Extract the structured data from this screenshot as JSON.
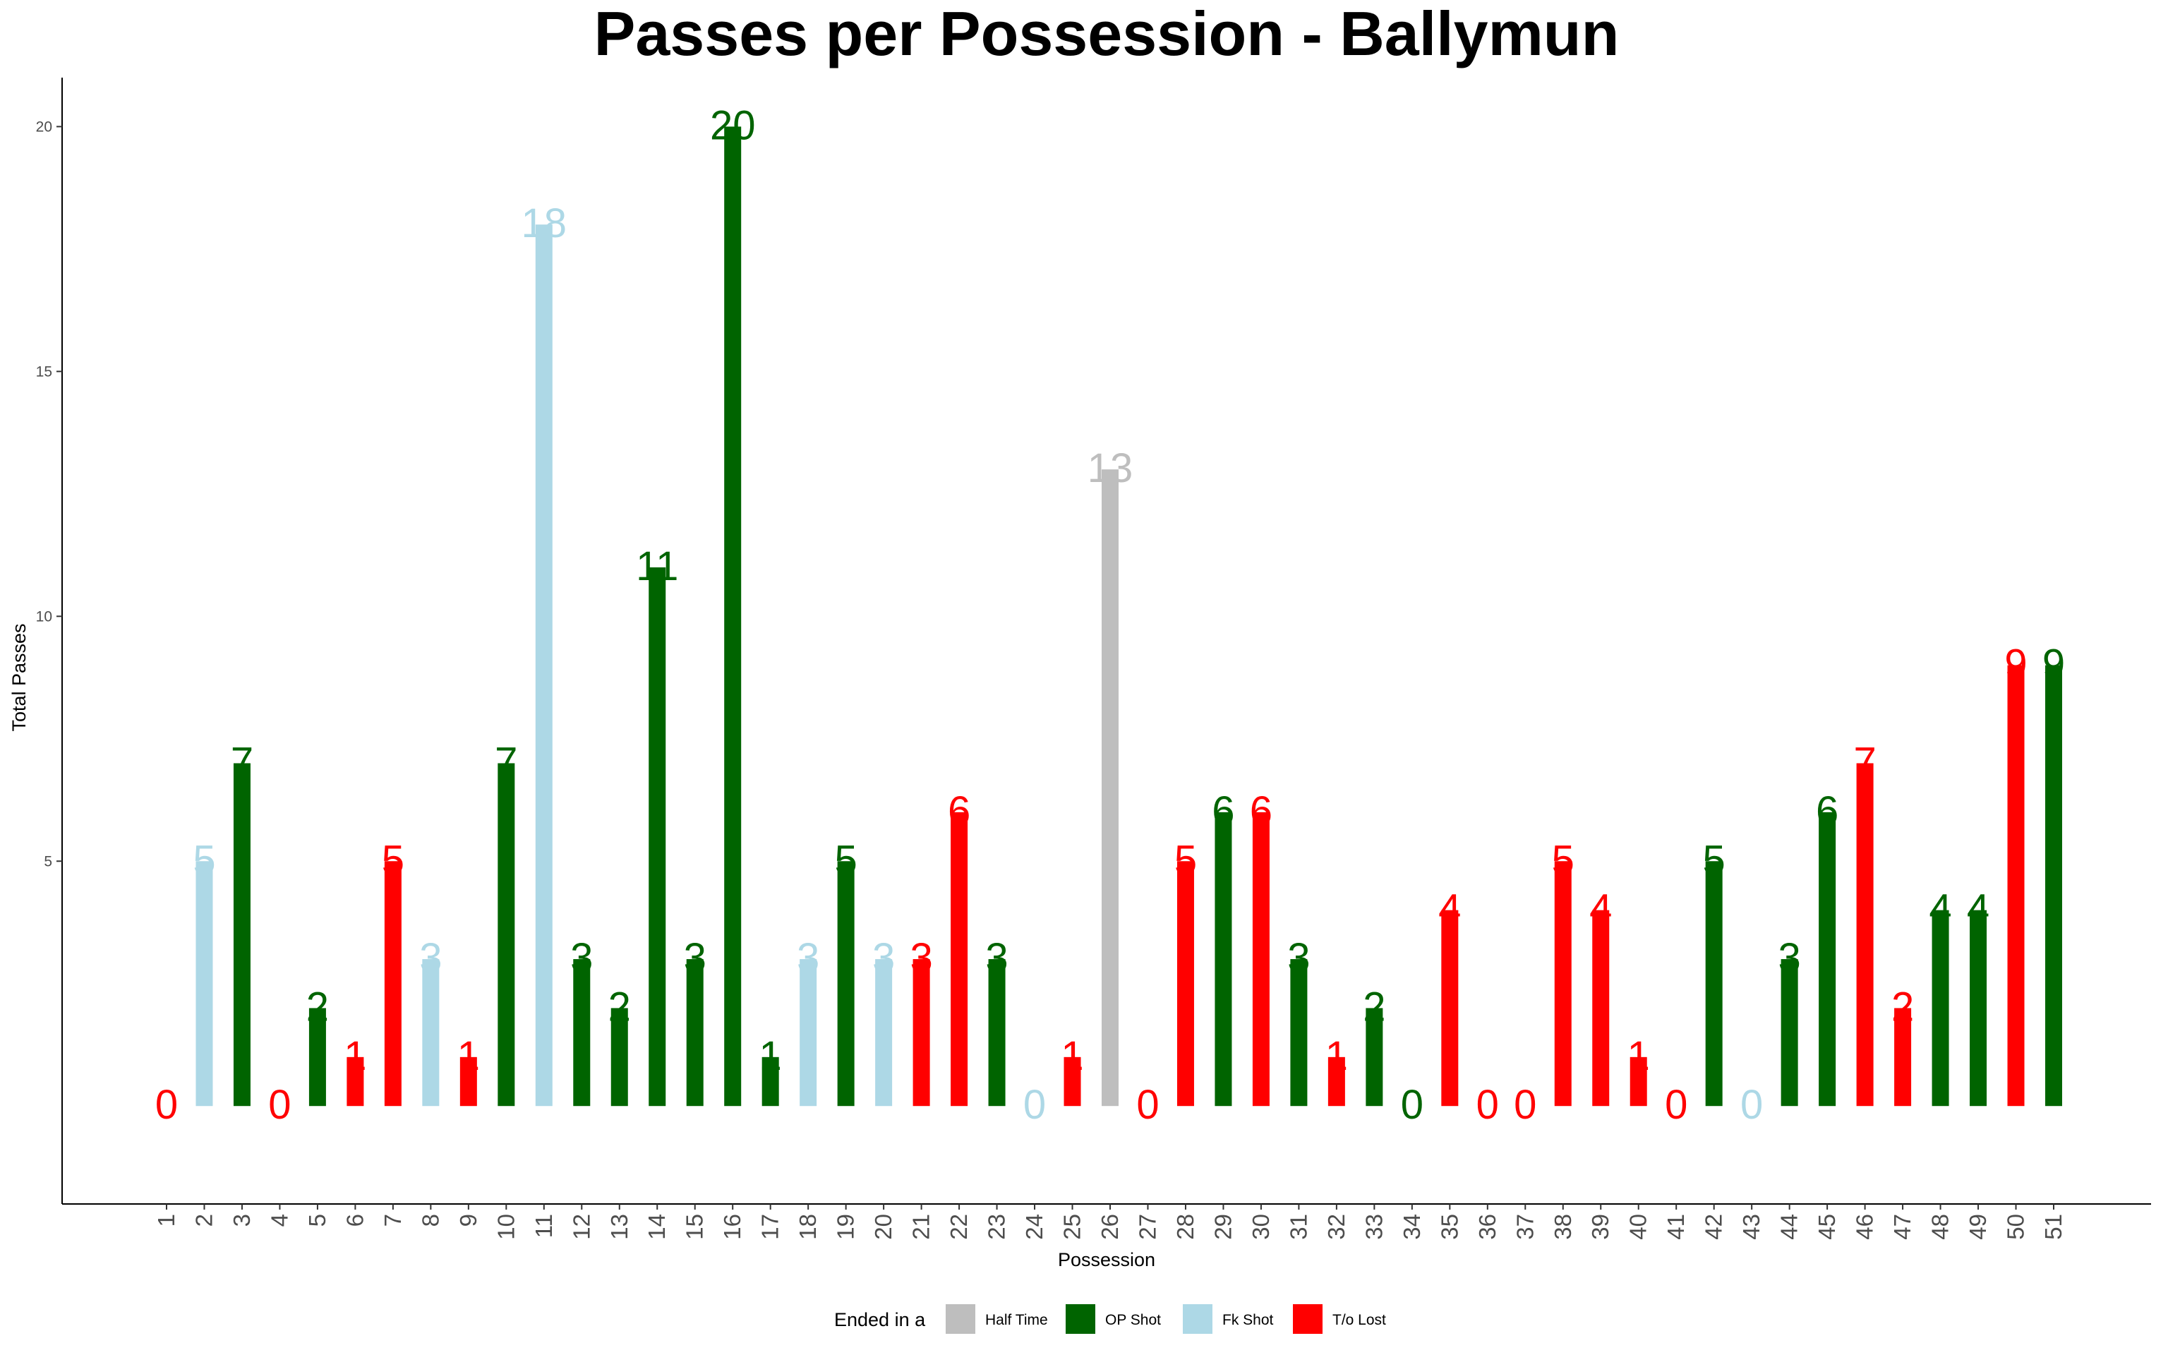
{
  "chart_data": {
    "type": "bar",
    "title": "Passes per Possession - Ballymun",
    "xlabel": "Possession",
    "ylabel": "Total Passes",
    "ylim": [
      -2,
      21
    ],
    "yticks": [
      5,
      10,
      15,
      20
    ],
    "grid": false,
    "legend": {
      "title": "Ended in a",
      "position": "bottom",
      "entries": [
        {
          "label": "Half Time",
          "color": "#bebebe"
        },
        {
          "label": "OP Shot",
          "color": "#006400"
        },
        {
          "label": "Fk Shot",
          "color": "#add8e6"
        },
        {
          "label": "T/o Lost",
          "color": "#ff0000"
        }
      ]
    },
    "categories": [
      "1",
      "2",
      "3",
      "4",
      "5",
      "6",
      "7",
      "8",
      "9",
      "10",
      "11",
      "12",
      "13",
      "14",
      "15",
      "16",
      "17",
      "18",
      "19",
      "20",
      "21",
      "22",
      "23",
      "24",
      "25",
      "26",
      "27",
      "28",
      "29",
      "30",
      "31",
      "32",
      "33",
      "34",
      "35",
      "36",
      "37",
      "38",
      "39",
      "40",
      "41",
      "42",
      "43",
      "44",
      "45",
      "46",
      "47",
      "48",
      "49",
      "50",
      "51"
    ],
    "values": [
      0,
      5,
      7,
      0,
      2,
      1,
      5,
      3,
      1,
      7,
      18,
      3,
      2,
      11,
      3,
      20,
      1,
      3,
      5,
      3,
      3,
      6,
      3,
      0,
      1,
      13,
      0,
      5,
      6,
      6,
      3,
      1,
      2,
      0,
      4,
      0,
      0,
      5,
      4,
      1,
      0,
      5,
      0,
      3,
      6,
      7,
      2,
      4,
      4,
      9,
      9
    ],
    "value_labels": [
      "0",
      "5",
      "7",
      "0",
      "2",
      "1",
      "5",
      "3",
      "1",
      "7",
      "18",
      "3",
      "2",
      "11",
      "3",
      "20",
      "1",
      "3",
      "5",
      "3",
      "3",
      "6",
      "3",
      "0",
      "1",
      "13",
      "0",
      "5",
      "6",
      "6",
      "3",
      "1",
      "2",
      "0",
      "4",
      "0",
      "0",
      "5",
      "4",
      "1",
      "0",
      "5",
      "0",
      "3",
      "6",
      "7",
      "2",
      "4",
      "4",
      "9",
      "9"
    ],
    "outcomes": [
      "T/o Lost",
      "Fk Shot",
      "OP Shot",
      "T/o Lost",
      "OP Shot",
      "T/o Lost",
      "T/o Lost",
      "Fk Shot",
      "T/o Lost",
      "OP Shot",
      "Fk Shot",
      "OP Shot",
      "OP Shot",
      "OP Shot",
      "OP Shot",
      "OP Shot",
      "OP Shot",
      "Fk Shot",
      "OP Shot",
      "Fk Shot",
      "T/o Lost",
      "T/o Lost",
      "OP Shot",
      "Fk Shot",
      "T/o Lost",
      "Half Time",
      "T/o Lost",
      "T/o Lost",
      "OP Shot",
      "T/o Lost",
      "OP Shot",
      "T/o Lost",
      "OP Shot",
      "OP Shot",
      "T/o Lost",
      "T/o Lost",
      "T/o Lost",
      "T/o Lost",
      "T/o Lost",
      "T/o Lost",
      "T/o Lost",
      "OP Shot",
      "Fk Shot",
      "OP Shot",
      "OP Shot",
      "T/o Lost",
      "T/o Lost",
      "OP Shot",
      "OP Shot",
      "T/o Lost",
      "OP Shot"
    ]
  }
}
